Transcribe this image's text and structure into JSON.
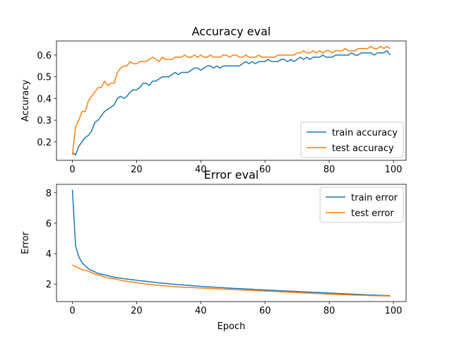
{
  "chart_data": [
    {
      "type": "line",
      "title": "Accuracy eval",
      "y_label": "Accuracy",
      "x": [
        0,
        1,
        2,
        3,
        4,
        5,
        6,
        7,
        8,
        9,
        10,
        11,
        12,
        13,
        14,
        15,
        16,
        17,
        18,
        19,
        20,
        21,
        22,
        23,
        24,
        25,
        26,
        27,
        28,
        29,
        30,
        31,
        32,
        33,
        34,
        35,
        36,
        37,
        38,
        39,
        40,
        41,
        42,
        43,
        44,
        45,
        46,
        47,
        48,
        49,
        50,
        51,
        52,
        53,
        54,
        55,
        56,
        57,
        58,
        59,
        60,
        61,
        62,
        63,
        64,
        65,
        66,
        67,
        68,
        69,
        70,
        71,
        72,
        73,
        74,
        75,
        76,
        77,
        78,
        79,
        80,
        81,
        82,
        83,
        84,
        85,
        86,
        87,
        88,
        89,
        90,
        91,
        92,
        93,
        94,
        95,
        96,
        97,
        98,
        99
      ],
      "series": [
        {
          "name": "train accuracy",
          "color": "#1f77b4",
          "values": [
            0.15,
            0.14,
            0.18,
            0.2,
            0.22,
            0.23,
            0.25,
            0.29,
            0.3,
            0.32,
            0.34,
            0.35,
            0.36,
            0.37,
            0.4,
            0.41,
            0.4,
            0.41,
            0.43,
            0.44,
            0.44,
            0.45,
            0.47,
            0.47,
            0.46,
            0.48,
            0.48,
            0.49,
            0.5,
            0.5,
            0.5,
            0.51,
            0.52,
            0.51,
            0.52,
            0.52,
            0.52,
            0.53,
            0.54,
            0.54,
            0.53,
            0.54,
            0.55,
            0.55,
            0.54,
            0.55,
            0.54,
            0.55,
            0.55,
            0.55,
            0.55,
            0.55,
            0.55,
            0.56,
            0.57,
            0.56,
            0.57,
            0.56,
            0.57,
            0.57,
            0.57,
            0.58,
            0.57,
            0.57,
            0.57,
            0.58,
            0.58,
            0.57,
            0.58,
            0.57,
            0.58,
            0.59,
            0.58,
            0.59,
            0.58,
            0.59,
            0.59,
            0.59,
            0.6,
            0.59,
            0.59,
            0.59,
            0.6,
            0.6,
            0.6,
            0.6,
            0.6,
            0.61,
            0.6,
            0.6,
            0.61,
            0.61,
            0.61,
            0.61,
            0.6,
            0.61,
            0.61,
            0.61,
            0.62,
            0.6
          ]
        },
        {
          "name": "test accuracy",
          "color": "#ff7f0e",
          "values": [
            0.14,
            0.27,
            0.3,
            0.34,
            0.34,
            0.39,
            0.41,
            0.43,
            0.45,
            0.45,
            0.48,
            0.46,
            0.47,
            0.47,
            0.52,
            0.54,
            0.55,
            0.55,
            0.57,
            0.56,
            0.56,
            0.57,
            0.57,
            0.57,
            0.58,
            0.59,
            0.58,
            0.57,
            0.59,
            0.58,
            0.58,
            0.58,
            0.59,
            0.59,
            0.59,
            0.6,
            0.59,
            0.59,
            0.6,
            0.59,
            0.6,
            0.59,
            0.59,
            0.6,
            0.59,
            0.59,
            0.59,
            0.6,
            0.6,
            0.59,
            0.6,
            0.6,
            0.59,
            0.59,
            0.6,
            0.59,
            0.59,
            0.59,
            0.6,
            0.59,
            0.59,
            0.59,
            0.59,
            0.59,
            0.6,
            0.6,
            0.6,
            0.6,
            0.6,
            0.6,
            0.61,
            0.61,
            0.62,
            0.61,
            0.61,
            0.62,
            0.61,
            0.62,
            0.61,
            0.62,
            0.62,
            0.61,
            0.62,
            0.62,
            0.62,
            0.63,
            0.62,
            0.62,
            0.62,
            0.63,
            0.63,
            0.63,
            0.63,
            0.64,
            0.63,
            0.63,
            0.64,
            0.63,
            0.64,
            0.63
          ]
        }
      ],
      "xlim": [
        -4.95,
        103.95
      ],
      "xticks": [
        0,
        20,
        40,
        60,
        80,
        100
      ],
      "ylim": [
        0.115,
        0.665
      ],
      "yticks": [
        0.2,
        0.3,
        0.4,
        0.5,
        0.6
      ],
      "legend": "lower right"
    },
    {
      "type": "line",
      "title": "Error eval",
      "x_label": "Epoch",
      "y_label": "Error",
      "x": [
        0,
        1,
        2,
        3,
        4,
        5,
        6,
        7,
        8,
        9,
        10,
        11,
        12,
        13,
        14,
        15,
        16,
        17,
        18,
        19,
        20,
        21,
        22,
        23,
        24,
        25,
        26,
        27,
        28,
        29,
        30,
        31,
        32,
        33,
        34,
        35,
        36,
        37,
        38,
        39,
        40,
        41,
        42,
        43,
        44,
        45,
        46,
        47,
        48,
        49,
        50,
        51,
        52,
        53,
        54,
        55,
        56,
        57,
        58,
        59,
        60,
        61,
        62,
        63,
        64,
        65,
        66,
        67,
        68,
        69,
        70,
        71,
        72,
        73,
        74,
        75,
        76,
        77,
        78,
        79,
        80,
        81,
        82,
        83,
        84,
        85,
        86,
        87,
        88,
        89,
        90,
        91,
        92,
        93,
        94,
        95,
        96,
        97,
        98,
        99
      ],
      "series": [
        {
          "name": "train error",
          "color": "#1f77b4",
          "values": [
            8.2,
            4.5,
            3.8,
            3.4,
            3.2,
            3.0,
            2.9,
            2.8,
            2.7,
            2.65,
            2.6,
            2.55,
            2.5,
            2.45,
            2.42,
            2.38,
            2.35,
            2.33,
            2.3,
            2.28,
            2.25,
            2.22,
            2.2,
            2.18,
            2.15,
            2.13,
            2.1,
            2.08,
            2.06,
            2.04,
            2.02,
            2.0,
            1.98,
            1.96,
            1.95,
            1.93,
            1.92,
            1.9,
            1.88,
            1.87,
            1.85,
            1.84,
            1.82,
            1.81,
            1.8,
            1.78,
            1.77,
            1.76,
            1.74,
            1.73,
            1.72,
            1.71,
            1.7,
            1.69,
            1.68,
            1.67,
            1.66,
            1.64,
            1.63,
            1.62,
            1.61,
            1.6,
            1.59,
            1.58,
            1.57,
            1.56,
            1.55,
            1.54,
            1.53,
            1.52,
            1.51,
            1.5,
            1.49,
            1.48,
            1.47,
            1.46,
            1.45,
            1.44,
            1.43,
            1.42,
            1.41,
            1.4,
            1.39,
            1.38,
            1.37,
            1.36,
            1.35,
            1.34,
            1.33,
            1.32,
            1.31,
            1.3,
            1.29,
            1.28,
            1.28,
            1.27,
            1.26,
            1.25,
            1.25,
            1.24
          ]
        },
        {
          "name": "test error",
          "color": "#ff7f0e",
          "values": [
            3.25,
            3.15,
            3.05,
            2.95,
            2.9,
            2.85,
            2.75,
            2.65,
            2.6,
            2.55,
            2.45,
            2.4,
            2.38,
            2.35,
            2.3,
            2.25,
            2.2,
            2.18,
            2.15,
            2.12,
            2.1,
            2.05,
            2.03,
            2.0,
            1.98,
            1.95,
            1.93,
            1.92,
            1.9,
            1.88,
            1.86,
            1.85,
            1.83,
            1.82,
            1.8,
            1.79,
            1.78,
            1.77,
            1.76,
            1.75,
            1.74,
            1.73,
            1.72,
            1.71,
            1.7,
            1.69,
            1.68,
            1.67,
            1.66,
            1.65,
            1.64,
            1.63,
            1.62,
            1.61,
            1.6,
            1.59,
            1.58,
            1.57,
            1.56,
            1.55,
            1.54,
            1.53,
            1.52,
            1.51,
            1.5,
            1.49,
            1.48,
            1.47,
            1.46,
            1.45,
            1.44,
            1.43,
            1.42,
            1.41,
            1.4,
            1.39,
            1.38,
            1.37,
            1.36,
            1.35,
            1.34,
            1.33,
            1.32,
            1.31,
            1.3,
            1.3,
            1.29,
            1.28,
            1.28,
            1.27,
            1.26,
            1.26,
            1.25,
            1.24,
            1.24,
            1.23,
            1.23,
            1.22,
            1.22,
            1.21
          ]
        }
      ],
      "xlim": [
        -4.95,
        103.95
      ],
      "xticks": [
        0,
        20,
        40,
        60,
        80,
        100
      ],
      "ylim": [
        0.85,
        8.55
      ],
      "yticks": [
        2,
        4,
        6,
        8
      ],
      "legend": "upper right"
    }
  ]
}
